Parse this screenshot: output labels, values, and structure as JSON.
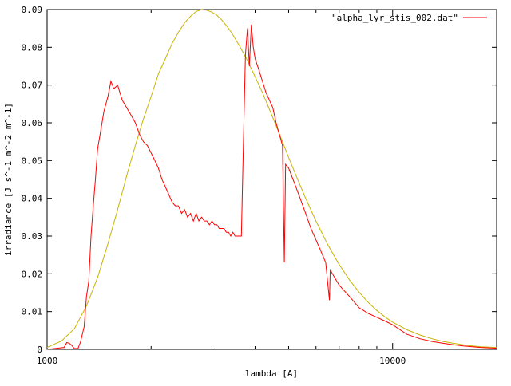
{
  "chart_data": {
    "type": "line",
    "title": "",
    "xlabel": "lambda [A]",
    "ylabel": "irradiance [J s^-1 m^-2 m^-1]",
    "x_scale": "log",
    "xlim": [
      1000,
      20000
    ],
    "ylim": [
      0,
      0.09
    ],
    "x_ticks": [
      1000,
      10000
    ],
    "x_tick_labels": [
      "1000",
      "10000"
    ],
    "y_ticks": [
      0,
      0.01,
      0.02,
      0.03,
      0.04,
      0.05,
      0.06,
      0.07,
      0.08,
      0.09
    ],
    "y_tick_labels": [
      "0",
      "0.01",
      "0.02",
      "0.03",
      "0.04",
      "0.05",
      "0.06",
      "0.07",
      "0.08",
      "0.09"
    ],
    "grid": false,
    "legend_position": "top-right",
    "series": [
      {
        "name": "\"alpha_lyr_stis_002.dat\"",
        "color": "#ff0000",
        "in_legend": true,
        "x": [
          1000,
          1120,
          1140,
          1160,
          1180,
          1200,
          1230,
          1250,
          1280,
          1300,
          1320,
          1340,
          1360,
          1380,
          1400,
          1430,
          1460,
          1500,
          1530,
          1560,
          1600,
          1650,
          1700,
          1750,
          1800,
          1850,
          1900,
          1950,
          2000,
          2050,
          2100,
          2150,
          2200,
          2250,
          2300,
          2350,
          2400,
          2450,
          2500,
          2550,
          2600,
          2650,
          2700,
          2750,
          2800,
          2850,
          2900,
          2950,
          3000,
          3050,
          3100,
          3150,
          3200,
          3250,
          3300,
          3350,
          3400,
          3450,
          3500,
          3550,
          3600,
          3650,
          3700,
          3750,
          3800,
          3850,
          3900,
          3950,
          4000,
          4100,
          4200,
          4300,
          4400,
          4500,
          4600,
          4700,
          4800,
          4860,
          4900,
          5000,
          5200,
          5400,
          5600,
          5800,
          6000,
          6200,
          6400,
          6563,
          6600,
          7000,
          7500,
          8000,
          8500,
          9000,
          9500,
          10000,
          11000,
          12000,
          13000,
          14000,
          15000,
          16000,
          17000,
          18000,
          19000,
          20000
        ],
        "y": [
          0,
          0.0005,
          0.0018,
          0.0016,
          0.001,
          0.0002,
          0.0003,
          0.002,
          0.006,
          0.014,
          0.018,
          0.03,
          0.038,
          0.045,
          0.053,
          0.058,
          0.063,
          0.067,
          0.071,
          0.069,
          0.07,
          0.066,
          0.064,
          0.062,
          0.06,
          0.057,
          0.055,
          0.054,
          0.052,
          0.05,
          0.048,
          0.045,
          0.043,
          0.041,
          0.039,
          0.038,
          0.038,
          0.036,
          0.037,
          0.035,
          0.036,
          0.034,
          0.036,
          0.034,
          0.035,
          0.034,
          0.034,
          0.033,
          0.034,
          0.033,
          0.033,
          0.032,
          0.032,
          0.032,
          0.031,
          0.031,
          0.03,
          0.031,
          0.03,
          0.03,
          0.03,
          0.03,
          0.055,
          0.078,
          0.085,
          0.075,
          0.086,
          0.08,
          0.077,
          0.074,
          0.071,
          0.068,
          0.066,
          0.064,
          0.06,
          0.057,
          0.054,
          0.023,
          0.049,
          0.048,
          0.044,
          0.04,
          0.036,
          0.032,
          0.029,
          0.026,
          0.023,
          0.013,
          0.021,
          0.017,
          0.014,
          0.011,
          0.0095,
          0.0085,
          0.0075,
          0.0065,
          0.004,
          0.0028,
          0.0021,
          0.0016,
          0.0012,
          0.0009,
          0.0007,
          0.0005,
          0.0004,
          0.0003
        ]
      },
      {
        "name": "",
        "color": "#c8b400",
        "in_legend": false,
        "x": [
          1000,
          1100,
          1200,
          1300,
          1400,
          1500,
          1600,
          1700,
          1800,
          1900,
          2000,
          2100,
          2200,
          2300,
          2400,
          2500,
          2600,
          2700,
          2800,
          2900,
          3000,
          3100,
          3200,
          3300,
          3400,
          3600,
          3800,
          4000,
          4200,
          4400,
          4600,
          4800,
          5000,
          5300,
          5600,
          6000,
          6500,
          7000,
          7500,
          8000,
          8500,
          9000,
          9500,
          10000,
          11000,
          12000,
          13000,
          14000,
          15000,
          16000,
          17000,
          18000,
          19000,
          20000
        ],
        "y": [
          0.0005,
          0.0022,
          0.0055,
          0.0115,
          0.019,
          0.028,
          0.037,
          0.046,
          0.054,
          0.061,
          0.067,
          0.073,
          0.077,
          0.081,
          0.084,
          0.0865,
          0.0882,
          0.0895,
          0.09,
          0.0898,
          0.0893,
          0.0885,
          0.0873,
          0.0858,
          0.0842,
          0.0805,
          0.0765,
          0.0722,
          0.068,
          0.0636,
          0.0592,
          0.055,
          0.0508,
          0.0452,
          0.04,
          0.034,
          0.0276,
          0.0225,
          0.0184,
          0.0151,
          0.0124,
          0.0103,
          0.0086,
          0.0072,
          0.0052,
          0.0038,
          0.0028,
          0.0021,
          0.0016,
          0.0012,
          0.0009,
          0.0007,
          0.0006,
          0.0005
        ]
      }
    ]
  }
}
